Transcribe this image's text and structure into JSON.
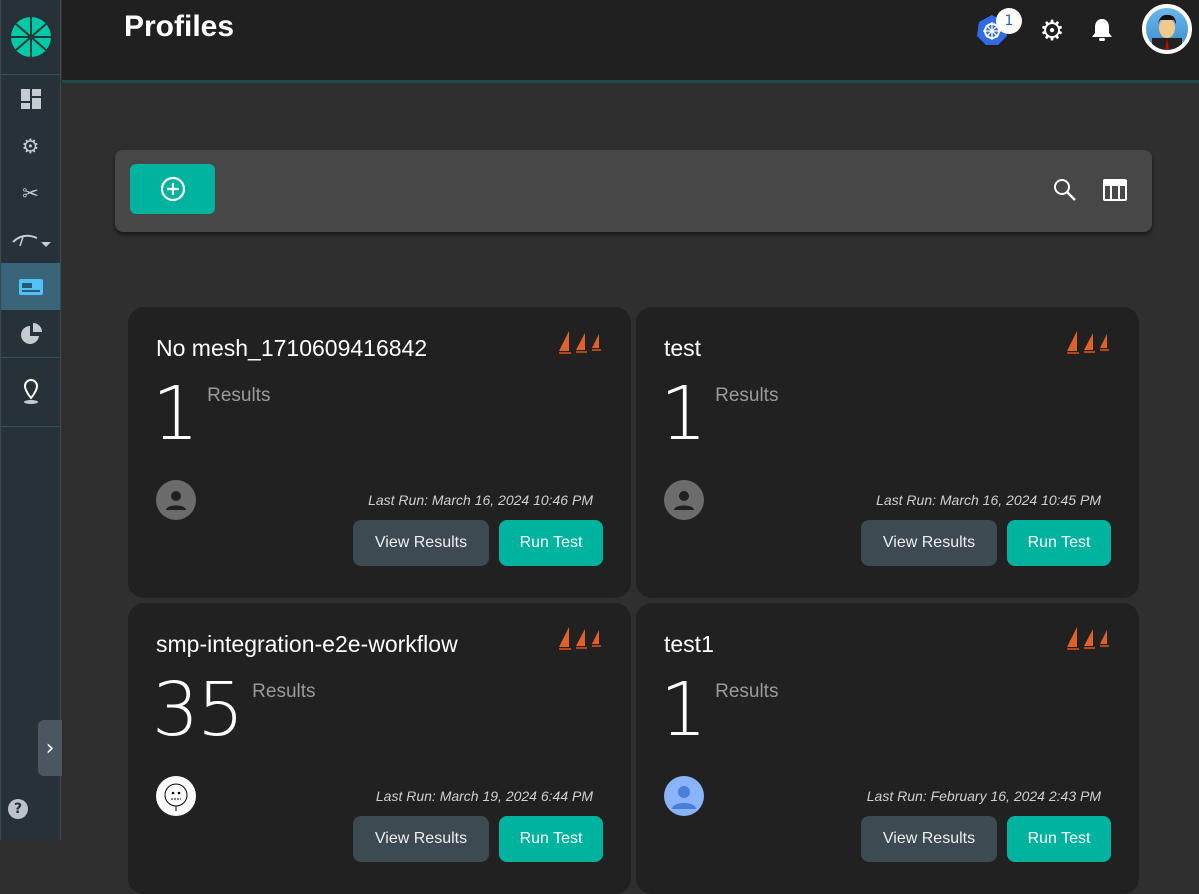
{
  "header": {
    "title": "Profiles",
    "kubernetes_badge_count": "1"
  },
  "colors": {
    "accent": "#00b39f",
    "sidebar": "#263238",
    "active": "#3a6478",
    "card": "#212121"
  },
  "sidebar": {
    "items": [
      "dashboard-icon",
      "lifecycle-gears-icon",
      "configuration-tools-icon",
      "performance-gauge-icon",
      "profiles-card-icon",
      "extensions-pie-icon",
      "location-pin-icon"
    ],
    "active": "profiles-card-icon",
    "help": "?"
  },
  "cards": [
    {
      "title": "No mesh_1710609416842",
      "count": "1",
      "results_label": "Results",
      "last_run": "Last Run: March 16, 2024 10:46 PM",
      "view_label": "View Results",
      "run_label": "Run Test"
    },
    {
      "title": "test",
      "count": "1",
      "results_label": "Results",
      "last_run": "Last Run: March 16, 2024 10:45 PM",
      "view_label": "View Results",
      "run_label": "Run Test"
    },
    {
      "title": "smp-integration-e2e-workflow",
      "count": "35",
      "results_label": "Results",
      "last_run": "Last Run: March 19, 2024 6:44 PM",
      "view_label": "View Results",
      "run_label": "Run Test"
    },
    {
      "title": "test1",
      "count": "1",
      "results_label": "Results",
      "last_run": "Last Run: February 16, 2024 2:43 PM",
      "view_label": "View Results",
      "run_label": "Run Test"
    }
  ]
}
